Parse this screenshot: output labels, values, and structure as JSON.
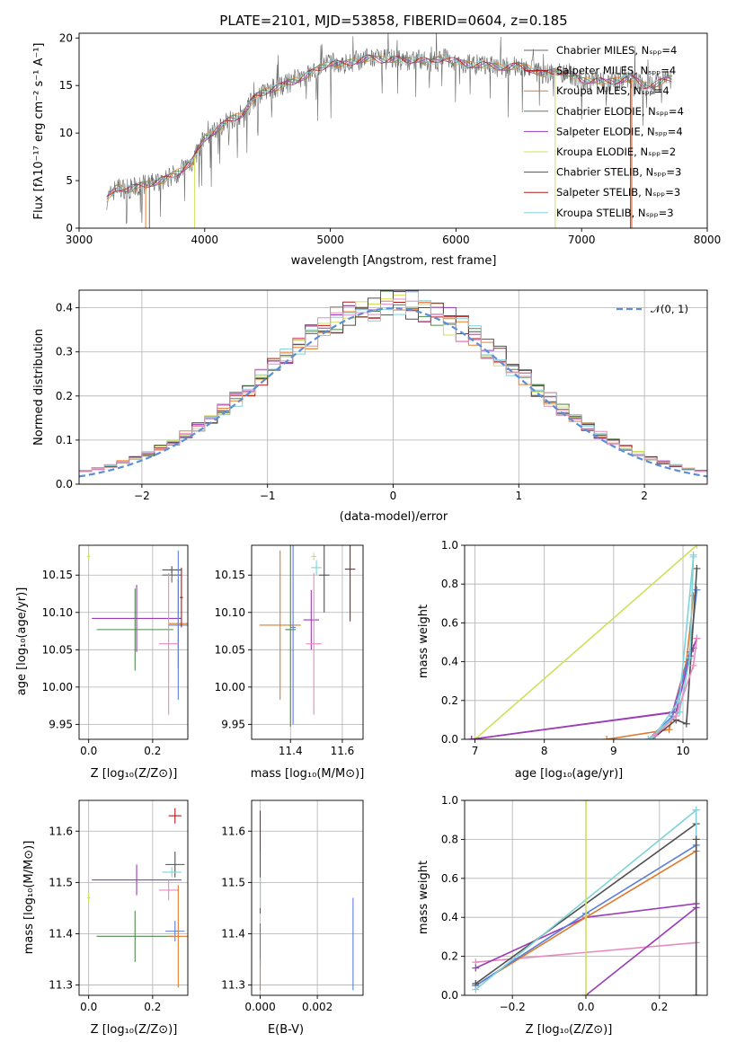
{
  "colors": [
    "#6a6a6a",
    "#ef7d28",
    "#e07a2a",
    "#4f8a4f",
    "#9b3cb8",
    "#cfe05a",
    "#505050",
    "#b01818",
    "#7fd3d8",
    "#e88ac0",
    "#5b7fd8"
  ],
  "chart_data": [
    {
      "id": "spectrum",
      "type": "line",
      "title": "PLATE=2101, MJD=53858, FIBERID=0604, z=0.185",
      "xlabel": "wavelength [Angstrom, rest frame]",
      "ylabel": "Flux [fλ10⁻¹⁷ erg cm⁻² s⁻¹ A⁻¹]",
      "xlim": [
        3000,
        8000
      ],
      "ylim": [
        0,
        20.5
      ],
      "xticks": [
        "3000",
        "4000",
        "5000",
        "6000",
        "7000",
        "8000"
      ],
      "yticks": [
        "0",
        "5",
        "10",
        "15",
        "20"
      ],
      "legend_position": "right",
      "continuum_x": [
        3220,
        3300,
        3400,
        3500,
        3600,
        3700,
        3800,
        3900,
        4000,
        4100,
        4200,
        4300,
        4400,
        4500,
        4600,
        4700,
        4800,
        4900,
        5000,
        5100,
        5200,
        5300,
        5400,
        5500,
        5600,
        5700,
        5800,
        5900,
        6000,
        6100,
        6200,
        6300,
        6400,
        6500,
        6600,
        6700,
        6800,
        6900,
        7000,
        7100,
        7200,
        7300,
        7400,
        7500,
        7600,
        7700
      ],
      "continuum_y": [
        3.0,
        4.3,
        4.1,
        4.5,
        4.8,
        5.2,
        6.0,
        7.0,
        9.5,
        10.4,
        11.4,
        12.0,
        13.8,
        14.5,
        14.9,
        15.4,
        16.0,
        16.7,
        17.4,
        17.2,
        17.6,
        17.9,
        17.7,
        17.8,
        17.6,
        17.8,
        17.4,
        18.0,
        17.5,
        17.2,
        17.2,
        17.0,
        16.9,
        17.1,
        16.7,
        16.2,
        16.5,
        16.3,
        15.5,
        15.6,
        15.3,
        15.6,
        15.8,
        15.0,
        15.2,
        15.7
      ],
      "legend": [
        "Chabrier MILES, Nₛₚₚ=4",
        "Salpeter MILES, Nₛₚₚ=4",
        "Kroupa MILES, Nₛₚₚ=4",
        "Chabrier ELODIE, Nₛₚₚ=4",
        "Salpeter ELODIE, Nₛₚₚ=4",
        "Kroupa ELODIE, Nₛₚₚ=2",
        "Chabrier STELIB, Nₛₚₚ=3",
        "Salpeter STELIB, Nₛₚₚ=3",
        "Kroupa STELIB, Nₛₚₚ=3"
      ]
    },
    {
      "id": "residuals",
      "type": "histogram",
      "xlabel": "(data-model)/error",
      "ylabel": "Normed distribution",
      "xlim": [
        -2.5,
        2.5
      ],
      "ylim": [
        0,
        0.44
      ],
      "xticks": [
        "−2",
        "−1",
        "0",
        "1",
        "2"
      ],
      "xtick_values": [
        -2,
        -1,
        0,
        1,
        2
      ],
      "yticks": [
        "0.0",
        "0.1",
        "0.2",
        "0.3",
        "0.4"
      ],
      "ytick_values": [
        0,
        0.1,
        0.2,
        0.3,
        0.4
      ],
      "legend": [
        "𝒩(0, 1)"
      ],
      "legend_position": "top-right"
    },
    {
      "id": "age-vs-Z",
      "type": "scatter",
      "xlabel": "Z [log₁₀(Z/Z⊙)]",
      "ylabel": "age  [log₁₀(age/yr)]",
      "xlim": [
        -0.03,
        0.31
      ],
      "ylim": [
        9.93,
        10.19
      ],
      "xticks": [
        "0.0",
        "0.2"
      ],
      "xtick_values": [
        0,
        0.2
      ],
      "yticks": [
        "9.95",
        "10.00",
        "10.05",
        "10.10",
        "10.15"
      ],
      "ytick_values": [
        9.95,
        10.0,
        10.05,
        10.1,
        10.15
      ],
      "points": [
        {
          "x": 0.0,
          "y": 10.175,
          "xerr": 0.005,
          "yerr": 0.005,
          "c": 5
        },
        {
          "x": 0.15,
          "y": 10.092,
          "xerr": 0.14,
          "yerr": 0.045,
          "c": 4
        },
        {
          "x": 0.145,
          "y": 10.077,
          "xerr": 0.12,
          "yerr": 0.055,
          "c": 3
        },
        {
          "x": 0.26,
          "y": 10.157,
          "xerr": 0.03,
          "yerr": 0.005,
          "c": 6
        },
        {
          "x": 0.26,
          "y": 10.15,
          "xerr": 0.03,
          "yerr": 0.01,
          "c": 0
        },
        {
          "x": 0.28,
          "y": 10.085,
          "xerr": 0.03,
          "yerr": 0.06,
          "c": 2
        },
        {
          "x": 0.28,
          "y": 10.083,
          "xerr": 0.03,
          "yerr": 0.1,
          "c": 10
        },
        {
          "x": 0.25,
          "y": 10.058,
          "xerr": 0.03,
          "yerr": 0.095,
          "c": 9
        },
        {
          "x": 0.29,
          "y": 10.12,
          "xerr": 0.005,
          "yerr": 0.04,
          "c": 7
        }
      ]
    },
    {
      "id": "age-vs-mass",
      "type": "scatter",
      "xlabel": "mass [log₁₀(M/M⊙)]",
      "xlim": [
        11.25,
        11.68
      ],
      "ylim": [
        9.93,
        10.19
      ],
      "xticks": [
        "11.4",
        "11.6"
      ],
      "xtick_values": [
        11.4,
        11.6
      ],
      "yticks": [
        "9.95",
        "10.00",
        "10.05",
        "10.10",
        "10.15"
      ],
      "ytick_values": [
        9.95,
        10.0,
        10.05,
        10.1,
        10.15
      ],
      "points": [
        {
          "x": 11.36,
          "y": 10.083,
          "xerr": 0.08,
          "yerr": 0.1,
          "c": 2
        },
        {
          "x": 11.4,
          "y": 10.077,
          "xerr": 0.02,
          "yerr": 0.13,
          "c": 3
        },
        {
          "x": 11.41,
          "y": 10.08,
          "xerr": 0.01,
          "yerr": 0.13,
          "c": 10
        },
        {
          "x": 11.48,
          "y": 10.09,
          "xerr": 0.03,
          "yerr": 0.04,
          "c": 4
        },
        {
          "x": 11.49,
          "y": 10.058,
          "xerr": 0.03,
          "yerr": 0.095,
          "c": 9
        },
        {
          "x": 11.5,
          "y": 10.16,
          "xerr": 0.02,
          "yerr": 0.01,
          "c": 8
        },
        {
          "x": 11.53,
          "y": 10.15,
          "xerr": 0.02,
          "yerr": 0.05,
          "c": 6
        },
        {
          "x": 11.49,
          "y": 10.175,
          "xerr": 0.01,
          "yerr": 0.005,
          "c": 5
        },
        {
          "x": 11.63,
          "y": 10.158,
          "xerr": 0.02,
          "yerr": 0.07,
          "c": 7
        }
      ]
    },
    {
      "id": "massweight-vs-age",
      "type": "line",
      "xlabel": "age  [log₁₀(age/yr)]",
      "ylabel": "mass weight",
      "xlim": [
        6.85,
        10.35
      ],
      "ylim": [
        0,
        1.0
      ],
      "xticks": [
        "7",
        "8",
        "9",
        "10"
      ],
      "xtick_values": [
        7,
        8,
        9,
        10
      ],
      "yticks": [
        "0.0",
        "0.2",
        "0.4",
        "0.6",
        "0.8",
        "1.0"
      ],
      "ytick_values": [
        0,
        0.2,
        0.4,
        0.6,
        0.8,
        1.0
      ],
      "series": [
        {
          "x": [
            7.0,
            10.2
          ],
          "y": [
            0.0,
            1.0
          ],
          "c": 5
        },
        {
          "x": [
            6.95,
            9.9,
            10.1,
            10.2
          ],
          "y": [
            0.0,
            0.14,
            0.43,
            0.52
          ],
          "c": 4
        },
        {
          "x": [
            6.95,
            9.85,
            10.05,
            10.15
          ],
          "y": [
            0.0,
            0.14,
            0.4,
            0.47
          ],
          "c": 4
        },
        {
          "x": [
            8.9,
            9.8,
            10.05,
            10.15
          ],
          "y": [
            0.0,
            0.05,
            0.4,
            0.74
          ],
          "c": 2
        },
        {
          "x": [
            9.5,
            9.85,
            10.1,
            10.2
          ],
          "y": [
            0.0,
            0.12,
            0.45,
            0.77
          ],
          "c": 10
        },
        {
          "x": [
            9.55,
            9.9,
            10.05,
            10.2
          ],
          "y": [
            0.0,
            0.1,
            0.08,
            0.88
          ],
          "c": 6
        },
        {
          "x": [
            9.5,
            9.95,
            10.1,
            10.15
          ],
          "y": [
            0.0,
            0.14,
            0.42,
            0.95
          ],
          "c": 8
        },
        {
          "x": [
            9.55,
            9.95,
            10.15
          ],
          "y": [
            0.0,
            0.2,
            0.94
          ],
          "c": 8
        },
        {
          "x": [
            9.6,
            9.9,
            10.15,
            10.2
          ],
          "y": [
            0.02,
            0.12,
            0.38,
            0.52
          ],
          "c": 9
        }
      ]
    },
    {
      "id": "mass-vs-Z",
      "type": "scatter",
      "xlabel": "Z [log₁₀(Z/Z⊙)]",
      "ylabel": "mass [log₁₀(M/M⊙)]",
      "xlim": [
        -0.03,
        0.31
      ],
      "ylim": [
        11.28,
        11.66
      ],
      "xticks": [
        "0.0",
        "0.2"
      ],
      "xtick_values": [
        0,
        0.2
      ],
      "yticks": [
        "11.3",
        "11.4",
        "11.5",
        "11.6"
      ],
      "ytick_values": [
        11.3,
        11.4,
        11.5,
        11.6
      ],
      "points": [
        {
          "x": 0.0,
          "y": 11.47,
          "xerr": 0.005,
          "yerr": 0.01,
          "c": 5
        },
        {
          "x": 0.15,
          "y": 11.505,
          "xerr": 0.14,
          "yerr": 0.03,
          "c": 4
        },
        {
          "x": 0.145,
          "y": 11.395,
          "xerr": 0.12,
          "yerr": 0.05,
          "c": 3
        },
        {
          "x": 0.27,
          "y": 11.63,
          "xerr": 0.02,
          "yerr": 0.015,
          "c": 7
        },
        {
          "x": 0.27,
          "y": 11.535,
          "xerr": 0.03,
          "yerr": 0.025,
          "c": 6
        },
        {
          "x": 0.26,
          "y": 11.52,
          "xerr": 0.03,
          "yerr": 0.01,
          "c": 8
        },
        {
          "x": 0.25,
          "y": 11.485,
          "xerr": 0.03,
          "yerr": 0.02,
          "c": 9
        },
        {
          "x": 0.27,
          "y": 11.405,
          "xerr": 0.03,
          "yerr": 0.02,
          "c": 10
        },
        {
          "x": 0.28,
          "y": 11.395,
          "xerr": 0.03,
          "yerr": 0.1,
          "c": 2
        }
      ]
    },
    {
      "id": "mass-vs-EBV",
      "type": "scatter",
      "xlabel": "E(B-V)",
      "xlim": [
        -0.0003,
        0.0036
      ],
      "ylim": [
        11.28,
        11.66
      ],
      "xticks": [
        "0.000",
        "0.002"
      ],
      "xtick_values": [
        0,
        0.002
      ],
      "yticks": [
        "11.3",
        "11.4",
        "11.5",
        "11.6"
      ],
      "ytick_values": [
        11.3,
        11.4,
        11.5,
        11.6
      ],
      "points": [
        {
          "x": 0.0,
          "y": 11.6,
          "xerr": 0,
          "yerr": 0.04,
          "c": 7
        },
        {
          "x": 0.0,
          "y": 11.5,
          "xerr": 0,
          "yerr": 0.06,
          "c": 6
        },
        {
          "x": 0.0,
          "y": 11.48,
          "xerr": 0,
          "yerr": 0.03,
          "c": 8
        },
        {
          "x": 0.0,
          "y": 11.38,
          "xerr": 0,
          "yerr": 0.04,
          "c": 3
        },
        {
          "x": 0.0,
          "y": 11.32,
          "xerr": 0,
          "yerr": 0.03,
          "c": 2
        },
        {
          "x": 0.00325,
          "y": 11.38,
          "xerr": 0,
          "yerr": 0.09,
          "c": 10
        }
      ]
    },
    {
      "id": "massweight-vs-Z",
      "type": "line",
      "xlabel": "Z [log₁₀(Z/Z⊙)]",
      "ylabel": "mass weight",
      "xlim": [
        -0.33,
        0.33
      ],
      "ylim": [
        0,
        1.0
      ],
      "xticks": [
        "−0.2",
        "0.0",
        "0.2"
      ],
      "xtick_values": [
        -0.2,
        0,
        0.2
      ],
      "yticks": [
        "0.0",
        "0.2",
        "0.4",
        "0.6",
        "0.8",
        "1.0"
      ],
      "ytick_values": [
        0,
        0.2,
        0.4,
        0.6,
        0.8,
        1.0
      ],
      "series": [
        {
          "x": [
            -0.3,
            0.3
          ],
          "y": [
            0.17,
            0.27
          ],
          "c": 9
        },
        {
          "x": [
            -0.3,
            0.0,
            0.3
          ],
          "y": [
            0.14,
            0.4,
            0.47
          ],
          "c": 4
        },
        {
          "x": [
            0.0,
            0.3
          ],
          "y": [
            0.0,
            0.45
          ],
          "c": 4
        },
        {
          "x": [
            -0.3,
            0.0,
            0.3
          ],
          "y": [
            0.05,
            0.4,
            0.74
          ],
          "c": 2
        },
        {
          "x": [
            -0.3,
            0.0,
            0.3
          ],
          "y": [
            0.05,
            0.42,
            0.77
          ],
          "c": 10
        },
        {
          "x": [
            -0.3,
            0.3
          ],
          "y": [
            0.06,
            0.88
          ],
          "c": 6
        },
        {
          "x": [
            -0.3,
            0.3
          ],
          "y": [
            0.03,
            0.95
          ],
          "c": 8
        },
        {
          "x": [
            0.0,
            0.0
          ],
          "y": [
            0.0,
            1.0
          ],
          "c": 5
        },
        {
          "x": [
            0.3,
            0.3
          ],
          "y": [
            0.0,
            0.95
          ],
          "c": 8
        },
        {
          "x": [
            0.3,
            0.3
          ],
          "y": [
            0.0,
            0.8
          ],
          "c": 6
        }
      ]
    }
  ]
}
